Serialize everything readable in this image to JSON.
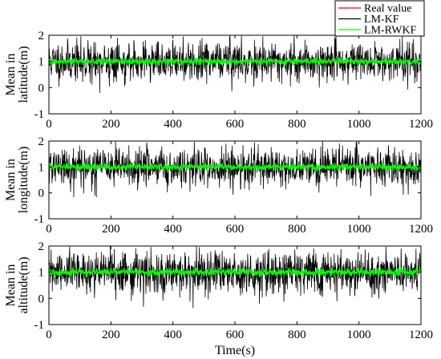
{
  "colors": {
    "real": "#ff0000",
    "lmkf": "#000000",
    "lmrwkf": "#00ff00"
  },
  "legend": {
    "entries": [
      {
        "label": "Real value",
        "color": "#ff0000"
      },
      {
        "label": "LM-KF",
        "color": "#000000"
      },
      {
        "label": "LM-RWKF",
        "color": "#00ff00"
      }
    ],
    "placement": "top-right"
  },
  "chart_data": [
    {
      "type": "line",
      "ylabel_lines": [
        "Mean in",
        "latitude(m)"
      ],
      "xlabel": "",
      "xlim": [
        0,
        1200
      ],
      "ylim": [
        -1,
        2
      ],
      "xticks": [
        0,
        200,
        400,
        600,
        800,
        1000,
        1200
      ],
      "yticks": [
        -1,
        0,
        1,
        2
      ],
      "xtick_labels": [
        "0",
        "200",
        "400",
        "600",
        "800",
        "1000",
        "1200"
      ],
      "ytick_labels": [
        "-1",
        "0",
        "1",
        "2"
      ],
      "grid": false,
      "n_points": 1200,
      "series": [
        {
          "name": "Real value",
          "color": "#ff0000",
          "constant": 1,
          "noise_std": 0
        },
        {
          "name": "LM-KF",
          "color": "#000000",
          "mean": 1,
          "noise_std": 0.38,
          "range": [
            -0.3,
            2
          ],
          "seed": 11
        },
        {
          "name": "LM-RWKF",
          "color": "#00ff00",
          "mean": 1,
          "noise_std": 0.06,
          "range": [
            0.85,
            1.15
          ],
          "seed": 12
        }
      ]
    },
    {
      "type": "line",
      "ylabel_lines": [
        "Mean in",
        "longitude(m)"
      ],
      "xlabel": "",
      "xlim": [
        0,
        1200
      ],
      "ylim": [
        -1,
        2
      ],
      "xticks": [
        0,
        200,
        400,
        600,
        800,
        1000,
        1200
      ],
      "yticks": [
        -1,
        0,
        1,
        2
      ],
      "xtick_labels": [
        "0",
        "200",
        "400",
        "600",
        "800",
        "1000",
        "1200"
      ],
      "ytick_labels": [
        "-1",
        "0",
        "1",
        "2"
      ],
      "grid": false,
      "n_points": 1200,
      "series": [
        {
          "name": "Real value",
          "color": "#ff0000",
          "constant": 1,
          "noise_std": 0
        },
        {
          "name": "LM-KF",
          "color": "#000000",
          "mean": 1,
          "noise_std": 0.38,
          "range": [
            -0.3,
            2
          ],
          "seed": 21
        },
        {
          "name": "LM-RWKF",
          "color": "#00ff00",
          "mean": 1,
          "noise_std": 0.06,
          "range": [
            0.85,
            1.15
          ],
          "seed": 22
        }
      ]
    },
    {
      "type": "line",
      "ylabel_lines": [
        "Mean in",
        "altitude(m)"
      ],
      "xlabel": "Time(s)",
      "xlim": [
        0,
        1200
      ],
      "ylim": [
        -1,
        2
      ],
      "xticks": [
        0,
        200,
        400,
        600,
        800,
        1000,
        1200
      ],
      "yticks": [
        -1,
        0,
        1,
        2
      ],
      "xtick_labels": [
        "0",
        "200",
        "400",
        "600",
        "800",
        "1000",
        "1200"
      ],
      "ytick_labels": [
        "-1",
        "0",
        "1",
        "2"
      ],
      "grid": false,
      "n_points": 1200,
      "series": [
        {
          "name": "Real value",
          "color": "#ff0000",
          "constant": 1,
          "noise_std": 0
        },
        {
          "name": "LM-KF",
          "color": "#000000",
          "mean": 1,
          "noise_std": 0.4,
          "range": [
            -0.7,
            2
          ],
          "seed": 31
        },
        {
          "name": "LM-RWKF",
          "color": "#00ff00",
          "mean": 1,
          "noise_std": 0.07,
          "range": [
            0.8,
            1.2
          ],
          "seed": 32
        }
      ]
    }
  ]
}
